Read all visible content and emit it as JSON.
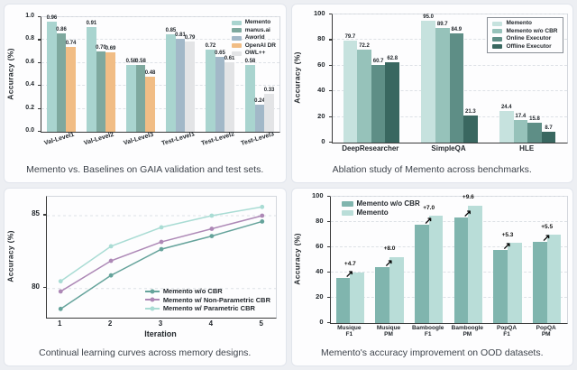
{
  "panels": [
    {
      "caption": "Memento vs. Baselines on GAIA validation and test sets."
    },
    {
      "caption": "Ablation study of Memento across benchmarks."
    },
    {
      "caption": "Continual learning curves across memory designs."
    },
    {
      "caption": "Memento's accuracy improvement on OOD datasets."
    }
  ],
  "chart_data": [
    {
      "type": "bar",
      "ylabel": "Accuracy (%)",
      "ylim": [
        0,
        1.0
      ],
      "yticks": [
        "0.0",
        "0.2",
        "0.4",
        "0.6",
        "0.8",
        "1.0"
      ],
      "rotate_xticks": true,
      "legend_position": "top-right",
      "legend": [
        {
          "name": "Memento",
          "color": "#a9d4cf"
        },
        {
          "name": "manus.ai",
          "color": "#7ea89e"
        },
        {
          "name": "Aworld",
          "color": "#a2b8c8"
        },
        {
          "name": "OpenAI DR",
          "color": "#f1bd85"
        },
        {
          "name": "OWL++",
          "color": "#e3e4e6"
        }
      ],
      "groups": [
        {
          "category": "Val-Level1",
          "bars": [
            {
              "series": "Memento",
              "value": 0.96,
              "label": "0.96"
            },
            {
              "series": "manus.ai",
              "value": 0.86,
              "label": "0.86"
            },
            {
              "series": "OpenAI DR",
              "value": 0.74,
              "label": "0.74"
            }
          ]
        },
        {
          "category": "Val-Level2",
          "bars": [
            {
              "series": "Memento",
              "value": 0.91,
              "label": "0.91"
            },
            {
              "series": "manus.ai",
              "value": 0.7,
              "label": "0.70"
            },
            {
              "series": "OpenAI DR",
              "value": 0.69,
              "label": "0.69"
            }
          ]
        },
        {
          "category": "Val-Level3",
          "bars": [
            {
              "series": "Memento",
              "value": 0.58,
              "label": "0.58"
            },
            {
              "series": "manus.ai",
              "value": 0.58,
              "label": "0.58"
            },
            {
              "series": "OpenAI DR",
              "value": 0.48,
              "label": "0.48"
            }
          ]
        },
        {
          "category": "Test-Level1",
          "bars": [
            {
              "series": "Memento",
              "value": 0.85,
              "label": "0.85"
            },
            {
              "series": "Aworld",
              "value": 0.81,
              "label": "0.81"
            },
            {
              "series": "OWL++",
              "value": 0.79,
              "label": "0.79"
            }
          ]
        },
        {
          "category": "Test-Level2",
          "bars": [
            {
              "series": "Memento",
              "value": 0.72,
              "label": "0.72"
            },
            {
              "series": "Aworld",
              "value": 0.65,
              "label": "0.65"
            },
            {
              "series": "OWL++",
              "value": 0.61,
              "label": "0.61"
            }
          ]
        },
        {
          "category": "Test-Level3",
          "bars": [
            {
              "series": "Memento",
              "value": 0.58,
              "label": "0.58"
            },
            {
              "series": "Aworld",
              "value": 0.24,
              "label": "0.24"
            },
            {
              "series": "OWL++",
              "value": 0.33,
              "label": "0.33"
            }
          ]
        }
      ]
    },
    {
      "type": "bar",
      "ylabel": "Accuracy (%)",
      "ylim": [
        0,
        100
      ],
      "yticks": [
        "0",
        "20",
        "40",
        "60",
        "80",
        "100"
      ],
      "legend_position": "top-right",
      "legend_border": true,
      "legend": [
        {
          "name": "Memento",
          "color": "#c6e2de"
        },
        {
          "name": "Memento w/o CBR",
          "color": "#96c2ba"
        },
        {
          "name": "Online Executor",
          "color": "#5e8e86"
        },
        {
          "name": "Offline Executor",
          "color": "#396760"
        }
      ],
      "categories": [
        "DeepResearcher",
        "SimpleQA",
        "HLE"
      ],
      "series": [
        {
          "name": "Memento",
          "color": "#c6e2de",
          "values": [
            79.7,
            95.0,
            24.4
          ],
          "labels": [
            "79.7",
            "95.0",
            "24.4"
          ]
        },
        {
          "name": "Memento w/o CBR",
          "color": "#96c2ba",
          "values": [
            72.2,
            89.7,
            17.4
          ],
          "labels": [
            "72.2",
            "89.7",
            "17.4"
          ]
        },
        {
          "name": "Online Executor",
          "color": "#5e8e86",
          "values": [
            60.7,
            84.9,
            15.8
          ],
          "labels": [
            "60.7",
            "84.9",
            "15.8"
          ]
        },
        {
          "name": "Offline Executor",
          "color": "#396760",
          "values": [
            62.8,
            21.3,
            8.7
          ],
          "labels": [
            "62.8",
            "21.3",
            "8.7"
          ]
        }
      ]
    },
    {
      "type": "line",
      "xlabel": "Iteration",
      "ylabel": "Accuracy (%)",
      "x": [
        1,
        2,
        3,
        4,
        5
      ],
      "ylim": [
        78,
        86.3
      ],
      "yticks": [
        "80",
        "85"
      ],
      "legend_position": "bottom-right",
      "series": [
        {
          "name": "Memento w/o CBR",
          "color": "#65a39b",
          "values": [
            78.6,
            80.9,
            82.7,
            83.6,
            84.6
          ]
        },
        {
          "name": "Memento w/ Non-Parametric CBR",
          "color": "#ad88b6",
          "values": [
            79.8,
            81.9,
            83.2,
            84.1,
            85.0
          ]
        },
        {
          "name": "Memento w/ Parametric CBR",
          "color": "#a9dcd4",
          "values": [
            80.5,
            82.9,
            84.2,
            85.0,
            85.6
          ]
        }
      ]
    },
    {
      "type": "bar",
      "ylabel": "Accuracy (%)",
      "ylim": [
        0,
        100
      ],
      "yticks": [
        "0",
        "20",
        "40",
        "60",
        "80",
        "100"
      ],
      "legend_position": "top-left",
      "legend": [
        {
          "name": "Memento w/o CBR",
          "color": "#80b5ae"
        },
        {
          "name": "Memento",
          "color": "#b9ddd8"
        }
      ],
      "categories": [
        "Musique\nF1",
        "Musique\nPM",
        "Bamboogle\nF1",
        "Bamboogle\nPM",
        "PopQA\nF1",
        "PopQA\nPM"
      ],
      "series": [
        {
          "name": "Memento w/o CBR",
          "color": "#80b5ae",
          "values": [
            35.3,
            43.8,
            77.3,
            83.0,
            57.7,
            63.9
          ]
        },
        {
          "name": "Memento",
          "color": "#b9ddd8",
          "values": [
            40.0,
            51.8,
            84.3,
            92.6,
            63.0,
            69.4
          ]
        }
      ],
      "annotations": [
        "+4.7",
        "+8.0",
        "+7.0",
        "+9.6",
        "+5.3",
        "+5.5"
      ]
    }
  ]
}
